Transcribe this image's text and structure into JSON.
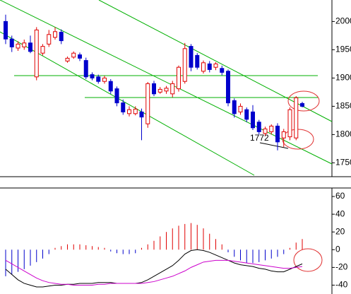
{
  "chart_data": [
    {
      "type": "candlestick",
      "open": [
        2000,
        1969,
        1953,
        1955,
        1962,
        1902,
        1944,
        1960,
        1972,
        1981,
        1930,
        1937,
        1941,
        1931,
        1906,
        1902,
        1894,
        1894,
        1881,
        1856,
        1837,
        1837,
        1840,
        1819,
        1890,
        1875,
        1877,
        1872,
        1881,
        1894,
        1956,
        1940,
        1912,
        1925,
        1919,
        1917,
        1912,
        1860,
        1840,
        1844,
        1840,
        1822,
        1802,
        1805,
        1815,
        1794,
        1796,
        1794,
        1855
      ],
      "close": [
        1969,
        1955,
        1960,
        1962,
        1947,
        1985,
        1956,
        1977,
        1982,
        1966,
        1935,
        1944,
        1935,
        1902,
        1900,
        1894,
        1900,
        1877,
        1856,
        1840,
        1844,
        1845,
        1831,
        1890,
        1872,
        1880,
        1882,
        1890,
        1919,
        1952,
        1919,
        1919,
        1927,
        1915,
        1925,
        1910,
        1856,
        1837,
        1850,
        1827,
        1812,
        1805,
        1810,
        1815,
        1787,
        1805,
        1844,
        1865,
        1850
      ],
      "high": [
        2012,
        1975,
        1965,
        1968,
        1975,
        1990,
        1960,
        1985,
        1990,
        1986,
        1938,
        1947,
        1945,
        1936,
        1910,
        1906,
        1904,
        1898,
        1885,
        1862,
        1850,
        1850,
        1846,
        1893,
        1895,
        1884,
        1886,
        1895,
        1922,
        1962,
        1960,
        1944,
        1931,
        1930,
        1928,
        1922,
        1915,
        1864,
        1855,
        1848,
        1852,
        1826,
        1814,
        1818,
        1820,
        1810,
        1848,
        1868,
        1858
      ],
      "low": [
        1960,
        1946,
        1948,
        1950,
        1944,
        1896,
        1940,
        1955,
        1968,
        1960,
        1927,
        1934,
        1930,
        1898,
        1896,
        1890,
        1890,
        1872,
        1850,
        1835,
        1832,
        1834,
        1790,
        1812,
        1868,
        1872,
        1872,
        1866,
        1876,
        1890,
        1912,
        1915,
        1908,
        1910,
        1914,
        1905,
        1850,
        1830,
        1835,
        1822,
        1808,
        1800,
        1798,
        1800,
        1772,
        1778,
        1790,
        1790,
        1848
      ],
      "up_color": "#e00000",
      "down_color": "#0000cc",
      "ylim": [
        1728,
        2038
      ],
      "yticks": [
        1750,
        1800,
        1850,
        1900,
        1950,
        2000
      ],
      "annotations": [
        "1772"
      ]
    },
    {
      "type": "macd",
      "series": [
        {
          "type": "bar",
          "color": "#e00000",
          "negative_color": "#0000cc",
          "values": [
            -30,
            -28,
            -25,
            -22,
            -18,
            -14,
            -10,
            -5,
            2,
            4,
            6,
            6,
            6,
            5,
            4,
            3,
            2,
            -2,
            -4,
            -5,
            -5,
            -4,
            2,
            6,
            10,
            15,
            20,
            24,
            27,
            29,
            30,
            28,
            24,
            18,
            12,
            6,
            -3,
            -8,
            -12,
            -15,
            -15,
            -14,
            -12,
            -10,
            -8,
            -5,
            2,
            8,
            12
          ]
        },
        {
          "type": "line",
          "color": "#000000",
          "values": [
            -22,
            -28,
            -34,
            -38,
            -40,
            -42,
            -42,
            -41,
            -40,
            -40,
            -39,
            -39,
            -38,
            -38,
            -38,
            -37,
            -37,
            -37,
            -38,
            -38,
            -38,
            -38,
            -37,
            -34,
            -30,
            -26,
            -22,
            -18,
            -12,
            -5,
            -1,
            0,
            -1,
            -3,
            -6,
            -9,
            -12,
            -15,
            -17,
            -18,
            -19,
            -21,
            -22,
            -24,
            -25,
            -25,
            -22,
            -19,
            -16
          ]
        },
        {
          "type": "line",
          "color": "#cc00cc",
          "values": [
            -12,
            -16,
            -20,
            -24,
            -28,
            -32,
            -35,
            -37,
            -38,
            -39,
            -39,
            -40,
            -40,
            -40,
            -40,
            -39,
            -39,
            -38,
            -38,
            -38,
            -38,
            -38,
            -38,
            -37,
            -36,
            -34,
            -32,
            -30,
            -27,
            -24,
            -20,
            -17,
            -14,
            -13,
            -12,
            -12,
            -12,
            -13,
            -14,
            -15,
            -16,
            -17,
            -18,
            -19,
            -20,
            -21,
            -21,
            -20,
            -19
          ]
        }
      ],
      "ylim": [
        -50,
        68
      ],
      "yticks": [
        -40,
        -20,
        0,
        20,
        40,
        60
      ]
    }
  ]
}
